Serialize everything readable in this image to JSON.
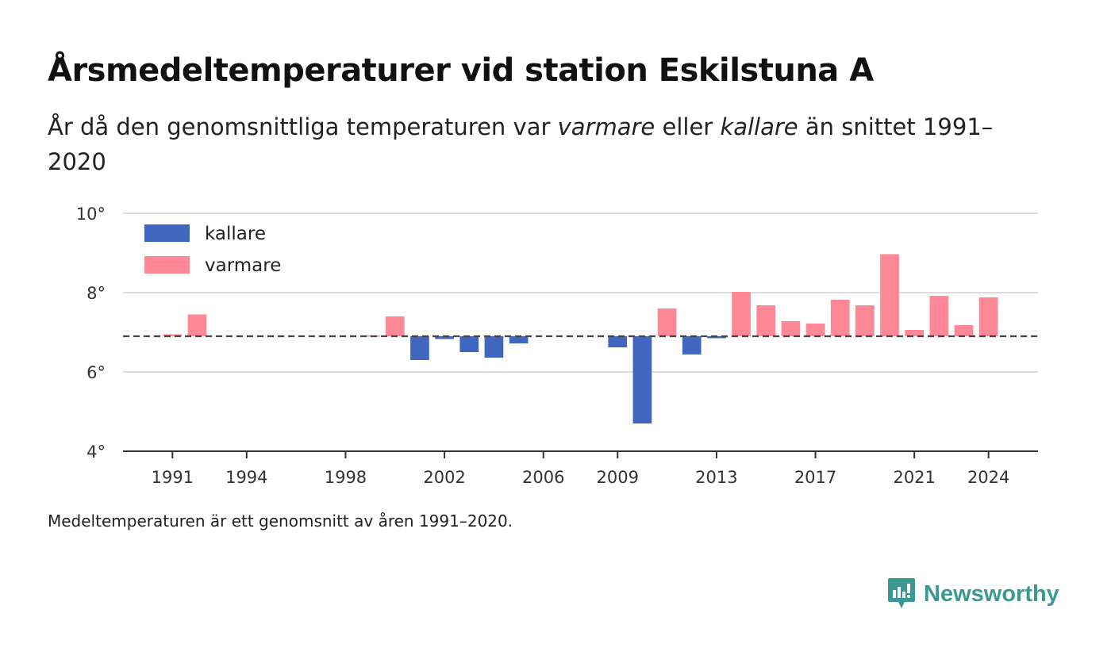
{
  "title": "Årsmedeltemperaturer vid station Eskilstuna A",
  "subtitle": {
    "part1": "År då den genomsnittliga temperaturen var ",
    "warm_word": "varmare",
    "part2": " eller ",
    "cold_word": "kallare",
    "part3": " än snittet 1991–2020"
  },
  "footnote": "Medeltemperaturen är ett genomsnitt av åren 1991–2020.",
  "brand": {
    "name": "Newsworthy",
    "icon": "newsworthy-logo-icon",
    "color": "#3a9a93"
  },
  "chart_data": {
    "type": "bar",
    "baseline": 6.9,
    "baseline_style": "dashed",
    "ylim": [
      4,
      10
    ],
    "yticks": [
      4,
      6,
      8,
      10
    ],
    "ytick_suffix": "°",
    "xticks": [
      1991,
      1994,
      1998,
      2002,
      2006,
      2009,
      2013,
      2017,
      2021,
      2024
    ],
    "xlim": [
      1989,
      2026
    ],
    "grid": true,
    "legend_position": "top-left",
    "colors": {
      "kallare": "#4066c0",
      "varmare": "#ff8896"
    },
    "legend": [
      {
        "key": "kallare",
        "label": "kallare"
      },
      {
        "key": "varmare",
        "label": "varmare"
      }
    ],
    "values": [
      {
        "year": 1991,
        "temp": 6.95
      },
      {
        "year": 1992,
        "temp": 7.45
      },
      {
        "year": 1999,
        "temp": 6.92
      },
      {
        "year": 2000,
        "temp": 7.4
      },
      {
        "year": 2001,
        "temp": 6.3
      },
      {
        "year": 2002,
        "temp": 6.83
      },
      {
        "year": 2003,
        "temp": 6.5
      },
      {
        "year": 2004,
        "temp": 6.36
      },
      {
        "year": 2005,
        "temp": 6.72
      },
      {
        "year": 2009,
        "temp": 6.62
      },
      {
        "year": 2010,
        "temp": 4.7
      },
      {
        "year": 2011,
        "temp": 7.6
      },
      {
        "year": 2012,
        "temp": 6.44
      },
      {
        "year": 2013,
        "temp": 6.85
      },
      {
        "year": 2014,
        "temp": 8.02
      },
      {
        "year": 2015,
        "temp": 7.68
      },
      {
        "year": 2016,
        "temp": 7.28
      },
      {
        "year": 2017,
        "temp": 7.22
      },
      {
        "year": 2018,
        "temp": 7.82
      },
      {
        "year": 2019,
        "temp": 7.68
      },
      {
        "year": 2020,
        "temp": 8.97
      },
      {
        "year": 2021,
        "temp": 7.06
      },
      {
        "year": 2022,
        "temp": 7.92
      },
      {
        "year": 2023,
        "temp": 7.18
      },
      {
        "year": 2024,
        "temp": 7.88
      }
    ]
  }
}
